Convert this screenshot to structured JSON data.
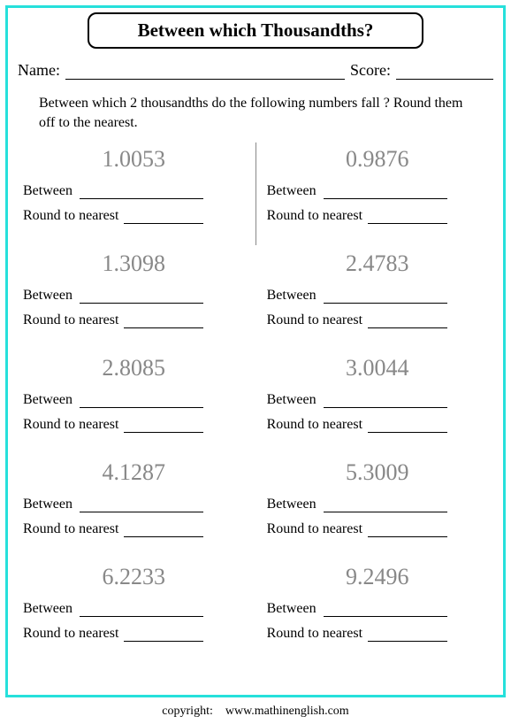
{
  "title": "Between which Thousandths?",
  "name_label": "Name:",
  "score_label": "Score:",
  "instructions": "Between which 2 thousandths do the following numbers fall ? Round them off to the nearest.",
  "between_label": "Between",
  "round_label": "Round to nearest",
  "problems_left": [
    "1.0053",
    "1.3098",
    "2.8085",
    "4.1287",
    "6.2233"
  ],
  "problems_right": [
    "0.9876",
    "2.4783",
    "3.0044",
    "5.3009",
    "9.2496"
  ],
  "footer_copyright": "copyright:",
  "footer_site": "www.mathinenglish.com",
  "colors": {
    "border": "#26e0db",
    "big_num": "#888888",
    "text": "#000000",
    "background": "#ffffff"
  },
  "typography": {
    "title_font": "Comic Sans MS",
    "title_size_pt": 16,
    "body_font": "Georgia/Times",
    "body_size_pt": 12,
    "big_num_size_pt": 20,
    "big_num_color": "#888888"
  }
}
